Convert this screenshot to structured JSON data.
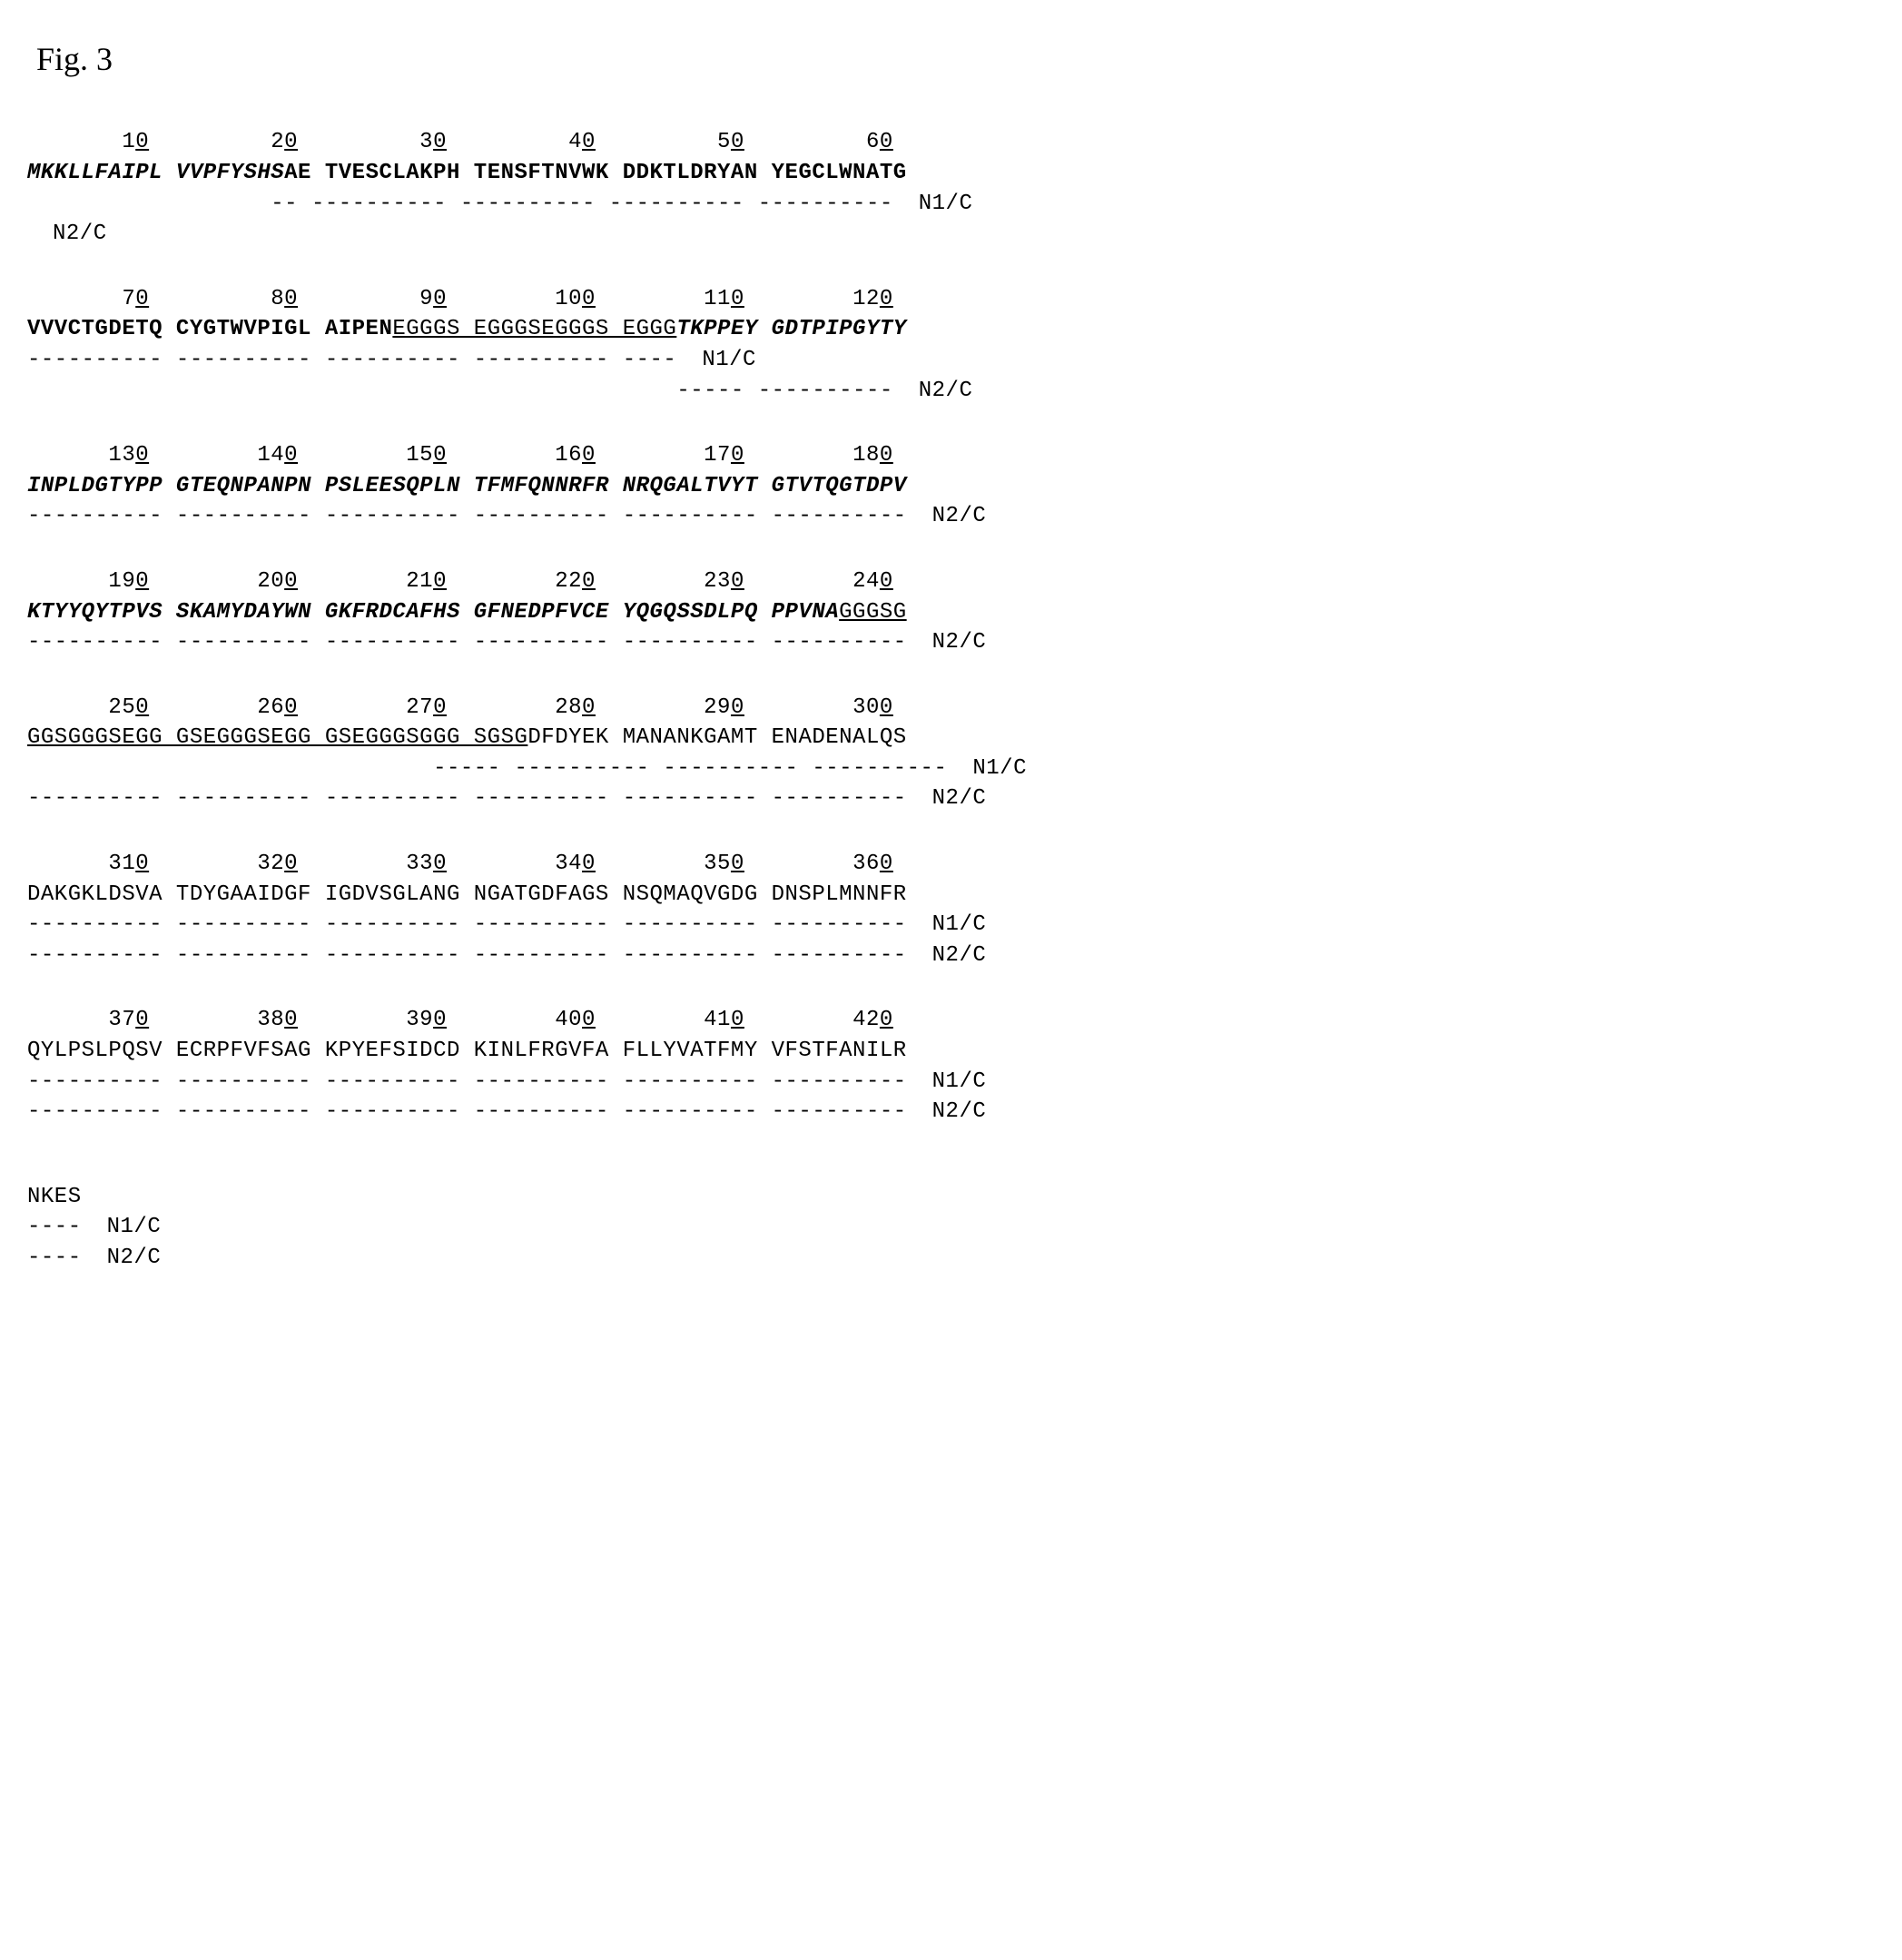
{
  "figureTitle": "Fig. 3",
  "fontFamily": "Courier New",
  "fontSizePt": 18,
  "rulerFontSizePt": 18,
  "bgColor": "#ffffff",
  "textColor": "#000000",
  "labelN1C": "N1/C",
  "labelN2C": "N2/C",
  "blocks": [
    {
      "ruler": [
        {
          "t": "       1",
          "u": false
        },
        {
          "t": "0",
          "u": true
        },
        {
          "t": "         2",
          "u": false
        },
        {
          "t": "0",
          "u": true
        },
        {
          "t": "         3",
          "u": false
        },
        {
          "t": "0",
          "u": true
        },
        {
          "t": "         4",
          "u": false
        },
        {
          "t": "0",
          "u": true
        },
        {
          "t": "         5",
          "u": false
        },
        {
          "t": "0",
          "u": true
        },
        {
          "t": "         6",
          "u": false
        },
        {
          "t": "0",
          "u": true
        }
      ],
      "seq": [
        {
          "t": "MKKLLFAIPL VVPFYSHS",
          "style": "bolditalic"
        },
        {
          "t": "AE TVESCLAKPH TENSFTNVWK DDKTLDRYAN YEGCLWNATG",
          "style": "bold"
        }
      ],
      "aligns": [
        {
          "dash": "                  -- ---------- ---------- ---------- ----------",
          "label": "N1/C"
        },
        {
          "dash": "",
          "label": "N2/C"
        }
      ]
    },
    {
      "ruler": [
        {
          "t": "       7",
          "u": false
        },
        {
          "t": "0",
          "u": true
        },
        {
          "t": "         8",
          "u": false
        },
        {
          "t": "0",
          "u": true
        },
        {
          "t": "         9",
          "u": false
        },
        {
          "t": "0",
          "u": true
        },
        {
          "t": "        10",
          "u": false
        },
        {
          "t": "0",
          "u": true
        },
        {
          "t": "        11",
          "u": false
        },
        {
          "t": "0",
          "u": true
        },
        {
          "t": "        12",
          "u": false
        },
        {
          "t": "0",
          "u": true
        }
      ],
      "seq": [
        {
          "t": "VVVCTGDETQ CYGTWVPIGL AIPEN",
          "style": "bold"
        },
        {
          "t": "EGGGS EGGGSEGGGS EGGG",
          "style": "underline"
        },
        {
          "t": "TKPPEY GDTPIPGYTY",
          "style": "bolditalic"
        }
      ],
      "aligns": [
        {
          "dash": "---------- ---------- ---------- ---------- ----",
          "label": "N1/C"
        },
        {
          "dash": "                                                ----- ----------",
          "label": "N2/C"
        }
      ]
    },
    {
      "ruler": [
        {
          "t": "      13",
          "u": false
        },
        {
          "t": "0",
          "u": true
        },
        {
          "t": "        14",
          "u": false
        },
        {
          "t": "0",
          "u": true
        },
        {
          "t": "        15",
          "u": false
        },
        {
          "t": "0",
          "u": true
        },
        {
          "t": "        16",
          "u": false
        },
        {
          "t": "0",
          "u": true
        },
        {
          "t": "        17",
          "u": false
        },
        {
          "t": "0",
          "u": true
        },
        {
          "t": "        18",
          "u": false
        },
        {
          "t": "0",
          "u": true
        }
      ],
      "seq": [
        {
          "t": "INPLDGTYPP GTEQNPANPN PSLEESQPLN TFMFQNNRFR NRQGALTVYT GTVTQGTDPV",
          "style": "bolditalic"
        }
      ],
      "aligns": [
        {
          "dash": "",
          "label": ""
        },
        {
          "dash": "---------- ---------- ---------- ---------- ---------- ----------",
          "label": "N2/C"
        }
      ]
    },
    {
      "ruler": [
        {
          "t": "      19",
          "u": false
        },
        {
          "t": "0",
          "u": true
        },
        {
          "t": "        20",
          "u": false
        },
        {
          "t": "0",
          "u": true
        },
        {
          "t": "        21",
          "u": false
        },
        {
          "t": "0",
          "u": true
        },
        {
          "t": "        22",
          "u": false
        },
        {
          "t": "0",
          "u": true
        },
        {
          "t": "        23",
          "u": false
        },
        {
          "t": "0",
          "u": true
        },
        {
          "t": "        24",
          "u": false
        },
        {
          "t": "0",
          "u": true
        }
      ],
      "seq": [
        {
          "t": "KTYYQYTPVS SKAMYDAYWN GKFRDCAFHS GFNEDPFVCE YQGQSSDLPQ PPVNA",
          "style": "bolditalic"
        },
        {
          "t": "GGGSG",
          "style": "underline"
        }
      ],
      "aligns": [
        {
          "dash": "",
          "label": ""
        },
        {
          "dash": "---------- ---------- ---------- ---------- ---------- ----------",
          "label": "N2/C"
        }
      ]
    },
    {
      "ruler": [
        {
          "t": "      25",
          "u": false
        },
        {
          "t": "0",
          "u": true
        },
        {
          "t": "        26",
          "u": false
        },
        {
          "t": "0",
          "u": true
        },
        {
          "t": "        27",
          "u": false
        },
        {
          "t": "0",
          "u": true
        },
        {
          "t": "        28",
          "u": false
        },
        {
          "t": "0",
          "u": true
        },
        {
          "t": "        29",
          "u": false
        },
        {
          "t": "0",
          "u": true
        },
        {
          "t": "        30",
          "u": false
        },
        {
          "t": "0",
          "u": true
        }
      ],
      "seq": [
        {
          "t": "GGSGGGSEGG GSEGGGSEGG GSEGGGSGGG SGSG",
          "style": "underline"
        },
        {
          "t": "DFDYEK MANANKGAMT ENADENALQS",
          "style": "normal"
        }
      ],
      "aligns": [
        {
          "dash": "                              ----- ---------- ---------- ----------",
          "label": "N1/C"
        },
        {
          "dash": "---------- ---------- ---------- ---------- ---------- ----------",
          "label": "N2/C"
        }
      ]
    },
    {
      "ruler": [
        {
          "t": "      31",
          "u": false
        },
        {
          "t": "0",
          "u": true
        },
        {
          "t": "        32",
          "u": false
        },
        {
          "t": "0",
          "u": true
        },
        {
          "t": "        33",
          "u": false
        },
        {
          "t": "0",
          "u": true
        },
        {
          "t": "        34",
          "u": false
        },
        {
          "t": "0",
          "u": true
        },
        {
          "t": "        35",
          "u": false
        },
        {
          "t": "0",
          "u": true
        },
        {
          "t": "        36",
          "u": false
        },
        {
          "t": "0",
          "u": true
        }
      ],
      "seq": [
        {
          "t": "DAKGKLDSVA TDYGAAIDGF IGDVSGLANG NGATGDFAGS NSQMAQVGDG DNSPLMNNFR",
          "style": "normal"
        }
      ],
      "aligns": [
        {
          "dash": "---------- ---------- ---------- ---------- ---------- ----------",
          "label": "N1/C"
        },
        {
          "dash": "---------- ---------- ---------- ---------- ---------- ----------",
          "label": "N2/C"
        }
      ]
    },
    {
      "ruler": [
        {
          "t": "      37",
          "u": false
        },
        {
          "t": "0",
          "u": true
        },
        {
          "t": "        38",
          "u": false
        },
        {
          "t": "0",
          "u": true
        },
        {
          "t": "        39",
          "u": false
        },
        {
          "t": "0",
          "u": true
        },
        {
          "t": "        40",
          "u": false
        },
        {
          "t": "0",
          "u": true
        },
        {
          "t": "        41",
          "u": false
        },
        {
          "t": "0",
          "u": true
        },
        {
          "t": "        42",
          "u": false
        },
        {
          "t": "0",
          "u": true
        }
      ],
      "seq": [
        {
          "t": "QYLPSLPQSV ECRPFVFSAG KPYEFSIDCD KINLFRGVFA FLLYVATFMY VFSTFANILR",
          "style": "normal"
        }
      ],
      "aligns": [
        {
          "dash": "---------- ---------- ---------- ---------- ---------- ----------",
          "label": "N1/C"
        },
        {
          "dash": "---------- ---------- ---------- ---------- ---------- ----------",
          "label": "N2/C"
        }
      ]
    }
  ],
  "finalBlock": {
    "seq": [
      {
        "t": "NKES",
        "style": "normal"
      }
    ],
    "aligns": [
      {
        "dash": "----",
        "label": "N1/C"
      },
      {
        "dash": "----",
        "label": "N2/C"
      }
    ]
  }
}
